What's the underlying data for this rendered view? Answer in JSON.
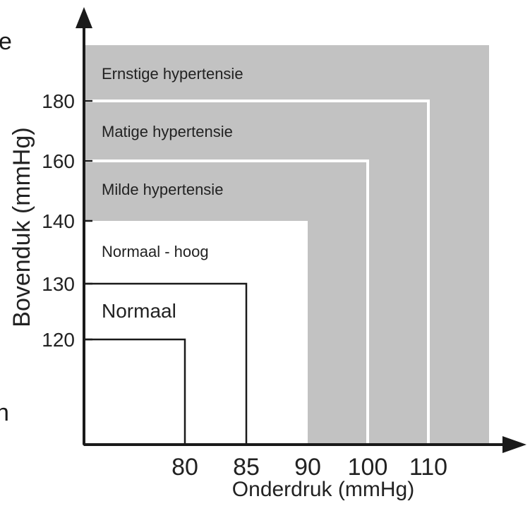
{
  "chart_data": {
    "type": "area",
    "title": "",
    "xlabel": "Onderdruk (mmHg)",
    "ylabel": "Bovenduk (mmHg)",
    "x_ticks": [
      80,
      85,
      90,
      100,
      110
    ],
    "y_ticks": [
      120,
      130,
      140,
      160,
      180
    ],
    "zones": [
      {
        "name": "Ernstige hypertensie",
        "x_max": null,
        "y_max": null,
        "fill": "#c2c2c2"
      },
      {
        "name": "Matige hypertensie",
        "x_max": 110,
        "y_max": 180,
        "fill": "#c2c2c2"
      },
      {
        "name": "Milde hypertensie",
        "x_max": 100,
        "y_max": 160,
        "fill": "#c2c2c2"
      },
      {
        "name": "Normaal - hoog",
        "x_max": 90,
        "y_max": 140,
        "fill": "#ffffff"
      },
      {
        "name": "Normaal",
        "x_max": 85,
        "y_max": 130,
        "fill": "#ffffff"
      },
      {
        "name": "",
        "x_max": 80,
        "y_max": 120,
        "fill": "#ffffff"
      }
    ],
    "grid": false,
    "legend": "none"
  },
  "cut_off_text": {
    "left_top": "e",
    "left_bottom": "n"
  },
  "colors": {
    "shaded": "#c2c2c2",
    "axis": "#1a1a1a",
    "text": "#222222",
    "divider": "#ffffff"
  }
}
